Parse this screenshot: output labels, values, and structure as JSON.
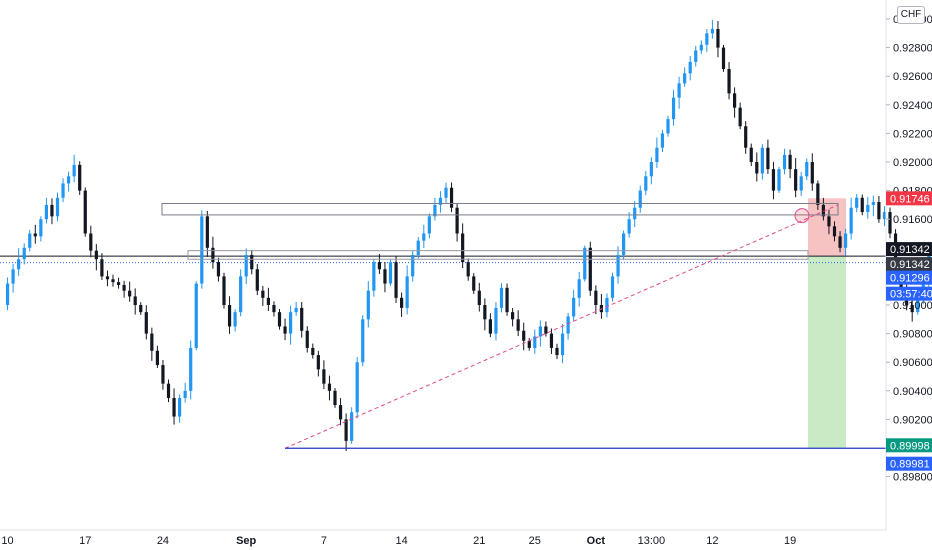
{
  "currency_label": "CHF",
  "chart_data": {
    "type": "candlestick",
    "symbol_currency": "CHF",
    "y_axis": {
      "min": 0.898,
      "max": 0.93,
      "ticks": [
        "0.93000",
        "0.92800",
        "0.92600",
        "0.92400",
        "0.92200",
        "0.92000",
        "0.91800",
        "0.91600",
        "0.91400",
        "0.91200",
        "0.91000",
        "0.90800",
        "0.90600",
        "0.90400",
        "0.90200",
        "0.90000",
        "0.89800"
      ]
    },
    "x_axis": {
      "ticks": [
        {
          "label": "10",
          "bold": false,
          "idx": 1
        },
        {
          "label": "17",
          "bold": false,
          "idx": 15
        },
        {
          "label": "24",
          "bold": false,
          "idx": 29
        },
        {
          "label": "Sep",
          "bold": true,
          "idx": 44
        },
        {
          "label": "7",
          "bold": false,
          "idx": 58
        },
        {
          "label": "14",
          "bold": false,
          "idx": 72
        },
        {
          "label": "21",
          "bold": false,
          "idx": 86
        },
        {
          "label": "25",
          "bold": false,
          "idx": 96
        },
        {
          "label": "Oct",
          "bold": true,
          "idx": 107
        },
        {
          "label": "13:00",
          "bold": false,
          "idx": 117
        },
        {
          "label": "12",
          "bold": false,
          "idx": 128
        },
        {
          "label": "19",
          "bold": false,
          "idx": 142
        }
      ]
    },
    "price_path": [
      0.91,
      0.9115,
      0.9125,
      0.9132,
      0.914,
      0.915,
      0.9148,
      0.916,
      0.917,
      0.9162,
      0.9175,
      0.9185,
      0.919,
      0.9198,
      0.918,
      0.915,
      0.9138,
      0.9132,
      0.912,
      0.9118,
      0.9116,
      0.9114,
      0.911,
      0.9106,
      0.91,
      0.9095,
      0.908,
      0.9068,
      0.9058,
      0.9045,
      0.9035,
      0.9022,
      0.9035,
      0.904,
      0.907,
      0.9115,
      0.9162,
      0.914,
      0.913,
      0.912,
      0.91,
      0.9085,
      0.9095,
      0.912,
      0.9135,
      0.9125,
      0.911,
      0.9105,
      0.91,
      0.9095,
      0.9085,
      0.908,
      0.9095,
      0.9098,
      0.9082,
      0.907,
      0.9065,
      0.9055,
      0.9045,
      0.904,
      0.903,
      0.902,
      0.9005,
      0.9025,
      0.906,
      0.909,
      0.911,
      0.913,
      0.9125,
      0.9115,
      0.913,
      0.9105,
      0.9098,
      0.912,
      0.9135,
      0.9145,
      0.915,
      0.9162,
      0.917,
      0.9175,
      0.9182,
      0.9168,
      0.915,
      0.913,
      0.912,
      0.911,
      0.91,
      0.909,
      0.908,
      0.9098,
      0.9112,
      0.9095,
      0.909,
      0.9082,
      0.9075,
      0.907,
      0.9078,
      0.9085,
      0.908,
      0.907,
      0.9065,
      0.908,
      0.9092,
      0.9105,
      0.9118,
      0.914,
      0.911,
      0.91,
      0.9095,
      0.9105,
      0.912,
      0.9135,
      0.915,
      0.916,
      0.9168,
      0.918,
      0.919,
      0.92,
      0.921,
      0.922,
      0.923,
      0.9245,
      0.9255,
      0.9262,
      0.927,
      0.9278,
      0.9282,
      0.929,
      0.9293,
      0.928,
      0.9265,
      0.9248,
      0.9238,
      0.9225,
      0.921,
      0.92,
      0.9192,
      0.921,
      0.9195,
      0.918,
      0.9195,
      0.9205,
      0.9195,
      0.918,
      0.919,
      0.92,
      0.9185,
      0.917,
      0.9162,
      0.9155,
      0.9148,
      0.914,
      0.915,
      0.9168,
      0.9175,
      0.9165,
      0.917,
      0.9172,
      0.916,
      0.9165,
      0.915,
      0.913,
      0.911,
      0.91,
      0.9095,
      0.9105,
      0.9115,
      0.914,
      0.9152,
      0.9145,
      0.9134
    ],
    "horizontal_levels": [
      {
        "price": 0.91342,
        "color": "#131722",
        "style": "solid"
      },
      {
        "price": 0.91296,
        "color": "#2962ff",
        "style": "dotted"
      }
    ],
    "support_line_price": 0.89998,
    "resistance_zone": {
      "top": 0.9171,
      "bottom": 0.9163
    },
    "position": {
      "entry": 0.91342,
      "stop": 0.91746,
      "target": 0.89998
    },
    "price_badges": [
      {
        "text": "0.91746",
        "bg": "#f23645",
        "price": 0.91746
      },
      {
        "text": "0.91342",
        "bg": "#131722",
        "price": 0.91342,
        "offset": -7
      },
      {
        "text": "0.91342",
        "bg": "#363a45",
        "price": 0.91342,
        "offset": 8
      },
      {
        "text": "0.91296",
        "bg": "#2962ff",
        "price": 0.91296,
        "offset": 15
      },
      {
        "text": "03:57:40",
        "bg": "#2962ff",
        "price": 0.91296,
        "offset": 31
      },
      {
        "text": "0.89998",
        "bg": "#089981",
        "price": 0.89998,
        "offset": -3
      },
      {
        "text": "0.89981",
        "bg": "#2962ff",
        "price": 0.89981,
        "offset": 13
      }
    ],
    "colors": {
      "up": "#2196f3",
      "down": "#131722",
      "zone_red": "#f7c2c2",
      "zone_green": "#c8ebc6",
      "trend": "#e04a8b",
      "support": "#2538c8"
    }
  }
}
